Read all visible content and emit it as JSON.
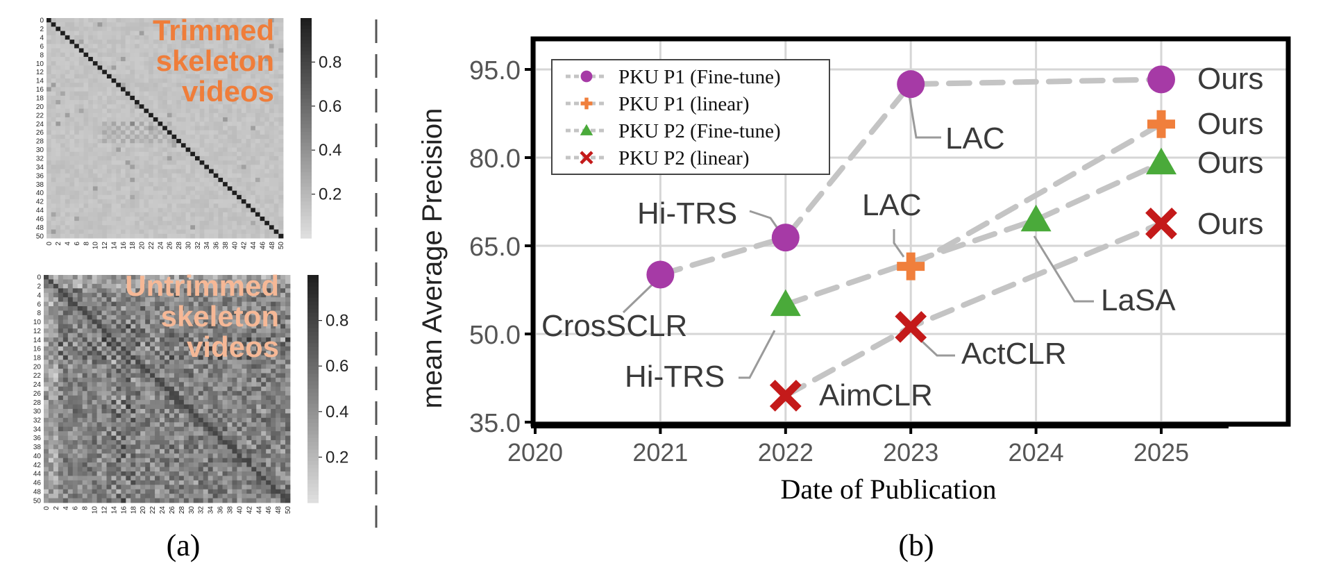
{
  "chart_data": [
    {
      "panel": "(a)",
      "type": "heatmap",
      "heatmaps": [
        {
          "title": "Trimmed skeleton videos",
          "title_lines": [
            "Trimmed",
            "skeleton",
            "videos"
          ],
          "title_color": "#ef7d3a",
          "size": 51,
          "tick_labels": [
            "0",
            "2",
            "4",
            "6",
            "8",
            "10",
            "12",
            "14",
            "16",
            "18",
            "20",
            "22",
            "24",
            "26",
            "28",
            "30",
            "32",
            "34",
            "36",
            "38",
            "40",
            "42",
            "44",
            "46",
            "48",
            "50"
          ],
          "colorbar_ticks": [
            "0.8",
            "0.6",
            "0.4",
            "0.2"
          ],
          "colorbar_values": [
            0.8,
            0.6,
            0.4,
            0.2
          ],
          "colorbar_range": [
            0.0,
            1.0
          ],
          "off_diagonal_level": 0.15,
          "diagonal_level": 1.0
        },
        {
          "title": "Untrimmed skeleton videos",
          "title_lines": [
            "Untrimmed",
            "skeleton",
            "videos"
          ],
          "title_color": "#f6b896",
          "size": 51,
          "tick_labels": [
            "0",
            "2",
            "4",
            "6",
            "8",
            "10",
            "12",
            "14",
            "16",
            "18",
            "20",
            "22",
            "24",
            "26",
            "28",
            "30",
            "32",
            "34",
            "36",
            "38",
            "40",
            "42",
            "44",
            "46",
            "48",
            "50"
          ],
          "colorbar_ticks": [
            "0.8",
            "0.6",
            "0.4",
            "0.2"
          ],
          "colorbar_values": [
            0.8,
            0.6,
            0.4,
            0.2
          ],
          "colorbar_range": [
            0.0,
            1.0
          ],
          "off_diagonal_level": 0.5,
          "diagonal_level": 0.8
        }
      ],
      "caption": "(a)"
    },
    {
      "panel": "(b)",
      "type": "scatter",
      "caption": "(b)",
      "xlabel": "Date of Publication",
      "ylabel": "mean Average Precision",
      "xticks": [
        "2020",
        "2021",
        "2022",
        "2023",
        "2024",
        "2025"
      ],
      "xtick_values": [
        2020,
        2021,
        2022,
        2023,
        2024,
        2025
      ],
      "yticks": [
        "35.0",
        "50.0",
        "65.0",
        "80.0",
        "95.0"
      ],
      "ytick_values": [
        35,
        50,
        65,
        80,
        95
      ],
      "xlim": [
        2019.75,
        2025.95
      ],
      "ylim": [
        34,
        100
      ],
      "grid": true,
      "legend_position": "top-left",
      "series": [
        {
          "name": "PKU P1 (Fine-tune)",
          "marker": "circle",
          "color": "#a63aa6",
          "points": [
            {
              "x": 2021,
              "y": 60.1,
              "label": "CrosSCLR"
            },
            {
              "x": 2022,
              "y": 66.4,
              "label": "Hi-TRS"
            },
            {
              "x": 2023,
              "y": 92.5,
              "label": "LAC"
            },
            {
              "x": 2025,
              "y": 93.3,
              "label": "Ours"
            }
          ]
        },
        {
          "name": "PKU P1 (linear)",
          "marker": "plus",
          "color": "#f07f3c",
          "points": [
            {
              "x": 2023,
              "y": 61.5,
              "label": "LAC"
            },
            {
              "x": 2025,
              "y": 85.7,
              "label": "Ours"
            }
          ]
        },
        {
          "name": "PKU P2 (Fine-tune)",
          "marker": "triangle",
          "color": "#4aaa3a",
          "points": [
            {
              "x": 2022,
              "y": 55.0,
              "label": "Hi-TRS"
            },
            {
              "x": 2024,
              "y": 69.4,
              "label": "LaSA"
            },
            {
              "x": 2025,
              "y": 79.1,
              "label": "Ours"
            }
          ]
        },
        {
          "name": "PKU P2 (linear)",
          "marker": "cross",
          "color": "#c41a1a",
          "points": [
            {
              "x": 2022,
              "y": 39.5,
              "label": "AimCLR"
            },
            {
              "x": 2023,
              "y": 51.2,
              "label": "ActCLR"
            },
            {
              "x": 2025,
              "y": 68.8,
              "label": "Ours"
            }
          ]
        }
      ]
    }
  ]
}
